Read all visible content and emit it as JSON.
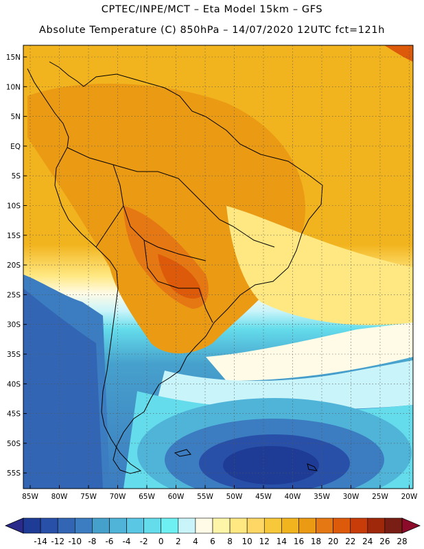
{
  "header": {
    "title_line1": "CPTEC/INPE/MCT –  Eta Model 15km – GFS",
    "title_line2": "Absolute Temperature (C) 850hPa – 14/07/2020 12UTC fct=121h"
  },
  "map": {
    "lat_labels": [
      "15N",
      "10N",
      "5N",
      "EQ",
      "5S",
      "10S",
      "15S",
      "20S",
      "25S",
      "30S",
      "35S",
      "40S",
      "45S",
      "50S",
      "55S"
    ],
    "lon_labels": [
      "85W",
      "80W",
      "75W",
      "70W",
      "65W",
      "60W",
      "55W",
      "50W",
      "45W",
      "40W",
      "35W",
      "30W",
      "25W",
      "20W"
    ]
  },
  "colorbar": {
    "labels": [
      "-14",
      "-12",
      "-10",
      "-8",
      "-6",
      "-4",
      "-2",
      "0",
      "2",
      "4",
      "6",
      "8",
      "10",
      "12",
      "14",
      "16",
      "18",
      "20",
      "22",
      "24",
      "26",
      "28"
    ],
    "colors": [
      "#1e3c96",
      "#2850a8",
      "#3266b4",
      "#3c7cc0",
      "#46a0cc",
      "#50b4d8",
      "#5ac8e4",
      "#64dceb",
      "#6ef0f2",
      "#c8f4fa",
      "#fffbe6",
      "#fff5a8",
      "#ffe882",
      "#ffd764",
      "#f7c93a",
      "#f2b41e",
      "#eb9a14",
      "#e67814",
      "#dc5a0a",
      "#c83c0a",
      "#a0280a",
      "#781e14"
    ],
    "low_end_color": "#2a2a8a",
    "high_end_color": "#8c0a2a"
  }
}
